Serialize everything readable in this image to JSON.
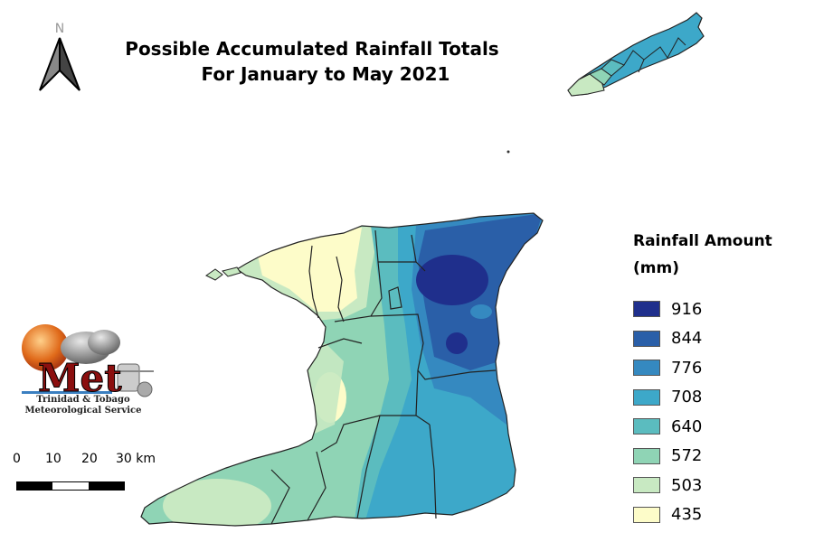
{
  "title": {
    "line1": "Possible Accumulated Rainfall Totals",
    "line2": "For January to May 2021"
  },
  "north_arrow": {
    "label": "N",
    "icon": "north-arrow-icon"
  },
  "legend": {
    "title": "Rainfall Amount\n(mm)",
    "items": [
      {
        "label": "916",
        "color": "#1f2f8c"
      },
      {
        "label": "844",
        "color": "#2a5fa8"
      },
      {
        "label": "776",
        "color": "#3589c0"
      },
      {
        "label": "708",
        "color": "#3da8c9"
      },
      {
        "label": "640",
        "color": "#5bbcbf"
      },
      {
        "label": "572",
        "color": "#8fd4b5"
      },
      {
        "label": "503",
        "color": "#c8e9c2"
      },
      {
        "label": "435",
        "color": "#fdfcc9"
      }
    ]
  },
  "logo": {
    "text": "Met",
    "org_line1": "Trinidad & Tobago",
    "org_line2": "Meteorological Service"
  },
  "scale_bar": {
    "labels": [
      "0",
      "10",
      "20",
      "30 km"
    ]
  }
}
